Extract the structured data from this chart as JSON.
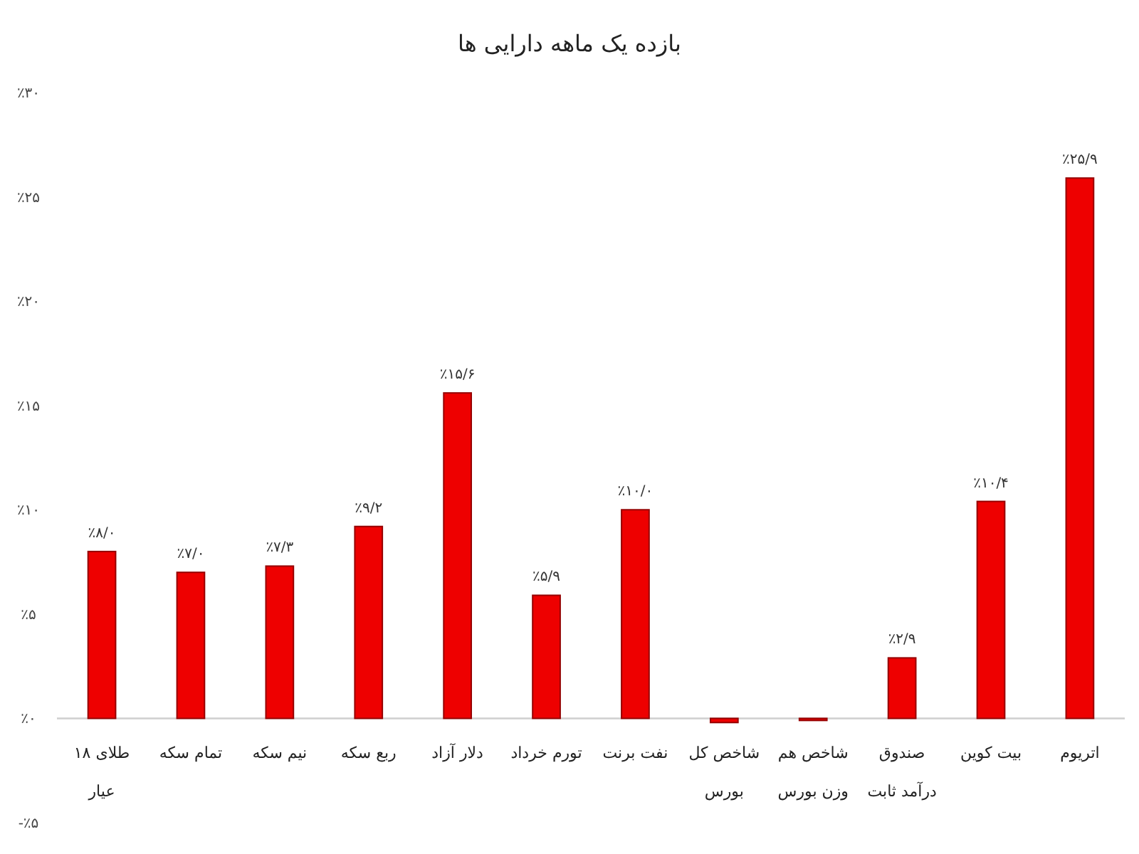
{
  "chart_data": {
    "type": "bar",
    "title": "بازده یک ماهه دارایی ها",
    "categories": [
      "طلای ۱۸ عیار",
      "تمام سکه",
      "نیم سکه",
      "ربع سکه",
      "دلار آزاد",
      "تورم خرداد",
      "نفت برنت",
      "شاخص کل بورس",
      "شاخص هم وزن بورس",
      "صندوق درآمد ثابت",
      "بیت کوین",
      "اتریوم"
    ],
    "values": [
      8.0,
      7.0,
      7.3,
      9.2,
      15.6,
      5.9,
      10.0,
      -0.2,
      -0.1,
      2.9,
      10.4,
      25.9
    ],
    "value_labels": [
      "٪۸/۰",
      "٪۷/۰",
      "٪۷/۳",
      "٪۹/۲",
      "٪۱۵/۶",
      "٪۵/۹",
      "٪۱۰/۰",
      null,
      null,
      "٪۲/۹",
      "٪۱۰/۴",
      "٪۲۵/۹"
    ],
    "color": "#ee0000",
    "ylim": [
      -5,
      30
    ],
    "yticks": [
      {
        "value": -5,
        "label": "-٪۵"
      },
      {
        "value": 0,
        "label": "٪۰"
      },
      {
        "value": 5,
        "label": "٪۵"
      },
      {
        "value": 10,
        "label": "٪۱۰"
      },
      {
        "value": 15,
        "label": "٪۱۵"
      },
      {
        "value": 20,
        "label": "٪۲۰"
      },
      {
        "value": 25,
        "label": "٪۲۵"
      },
      {
        "value": 30,
        "label": "٪۳۰"
      }
    ],
    "grid": false
  }
}
